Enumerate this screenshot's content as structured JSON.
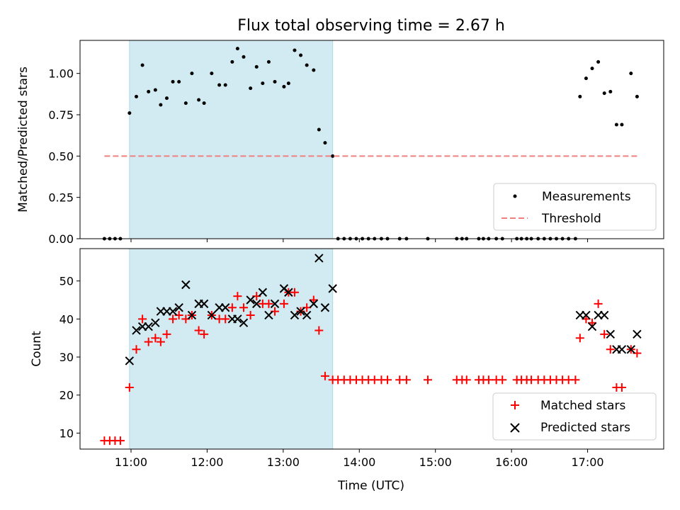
{
  "chart_data": {
    "title": "Flux total observing time = 2.67 h",
    "xlabel": "Time (UTC)",
    "xlim_hours": [
      10.33,
      18.0
    ],
    "xticks": [
      {
        "value": 11,
        "label": "11:00"
      },
      {
        "value": 12,
        "label": "12:00"
      },
      {
        "value": 13,
        "label": "13:00"
      },
      {
        "value": 14,
        "label": "14:00"
      },
      {
        "value": 15,
        "label": "15:00"
      },
      {
        "value": 16,
        "label": "16:00"
      },
      {
        "value": 17,
        "label": "17:00"
      }
    ],
    "shaded_interval_hours": [
      10.98,
      13.65
    ],
    "shade_color": "#add8e6",
    "panels": [
      {
        "type": "scatter",
        "ylabel": "Matched/Predicted stars",
        "ylim": [
          0,
          1.2
        ],
        "yticks": [
          {
            "value": 0,
            "label": "0.00"
          },
          {
            "value": 0.25,
            "label": "0.25"
          },
          {
            "value": 0.5,
            "label": "0.50"
          },
          {
            "value": 0.75,
            "label": "0.75"
          },
          {
            "value": 1.0,
            "label": "1.00"
          }
        ],
        "legend": "lower-right",
        "series": [
          {
            "name": "Measurements",
            "marker": "dot",
            "color": "#000000",
            "x": [
              10.65,
              10.72,
              10.79,
              10.86,
              10.98,
              11.07,
              11.15,
              11.23,
              11.32,
              11.39,
              11.47,
              11.55,
              11.63,
              11.72,
              11.8,
              11.89,
              11.96,
              12.06,
              12.16,
              12.24,
              12.33,
              12.4,
              12.48,
              12.57,
              12.65,
              12.73,
              12.81,
              12.89,
              13.01,
              13.07,
              13.15,
              13.23,
              13.31,
              13.4,
              13.47,
              13.55,
              13.65,
              13.72,
              13.8,
              13.88,
              13.96,
              14.04,
              14.12,
              14.2,
              14.29,
              14.37,
              14.53,
              14.62,
              14.9,
              15.28,
              15.35,
              15.41,
              15.57,
              15.63,
              15.7,
              15.8,
              15.88,
              16.07,
              16.13,
              16.2,
              16.26,
              16.35,
              16.43,
              16.51,
              16.59,
              16.67,
              16.75,
              16.84,
              16.9,
              16.98,
              17.06,
              17.14,
              17.22,
              17.3,
              17.38,
              17.45,
              17.57,
              17.65
            ],
            "y": [
              0,
              0,
              0,
              0,
              0.76,
              0.86,
              1.05,
              0.89,
              0.9,
              0.81,
              0.85,
              0.95,
              0.95,
              0.82,
              1.0,
              0.84,
              0.82,
              1.0,
              0.93,
              0.93,
              1.07,
              1.15,
              1.1,
              0.91,
              1.04,
              0.94,
              1.07,
              0.95,
              0.92,
              0.94,
              1.14,
              1.11,
              1.05,
              1.02,
              0.66,
              0.58,
              0.5,
              0,
              0,
              0,
              0,
              0,
              0,
              0,
              0,
              0,
              0,
              0,
              0,
              0,
              0,
              0,
              0,
              0,
              0,
              0,
              0,
              0,
              0,
              0,
              0,
              0,
              0,
              0,
              0,
              0,
              0,
              0,
              0.86,
              0.97,
              1.03,
              1.07,
              0.88,
              0.89,
              0.69,
              0.69,
              1.0,
              0.86
            ]
          },
          {
            "name": "Threshold",
            "type": "line",
            "style": "dashed",
            "color": "#f08080",
            "x": [
              10.65,
              17.65
            ],
            "y": [
              0.5,
              0.5
            ]
          }
        ]
      },
      {
        "type": "scatter",
        "ylabel": "Count",
        "ylim": [
          5.8,
          58.5
        ],
        "yticks": [
          {
            "value": 10,
            "label": "10"
          },
          {
            "value": 20,
            "label": "20"
          },
          {
            "value": 30,
            "label": "30"
          },
          {
            "value": 40,
            "label": "40"
          },
          {
            "value": 50,
            "label": "50"
          }
        ],
        "legend": "lower-right",
        "series": [
          {
            "name": "Matched stars",
            "marker": "plus",
            "color": "#ff0000",
            "x": [
              10.65,
              10.72,
              10.79,
              10.86,
              10.98,
              11.07,
              11.15,
              11.23,
              11.32,
              11.39,
              11.47,
              11.55,
              11.63,
              11.72,
              11.8,
              11.89,
              11.96,
              12.06,
              12.16,
              12.24,
              12.33,
              12.4,
              12.48,
              12.57,
              12.65,
              12.73,
              12.81,
              12.89,
              13.01,
              13.07,
              13.15,
              13.23,
              13.31,
              13.4,
              13.47,
              13.55,
              13.65,
              13.72,
              13.8,
              13.88,
              13.96,
              14.04,
              14.12,
              14.2,
              14.29,
              14.37,
              14.53,
              14.62,
              14.9,
              15.28,
              15.35,
              15.41,
              15.57,
              15.63,
              15.7,
              15.8,
              15.88,
              16.07,
              16.13,
              16.2,
              16.26,
              16.35,
              16.43,
              16.51,
              16.59,
              16.67,
              16.75,
              16.84,
              16.9,
              16.98,
              17.06,
              17.14,
              17.22,
              17.3,
              17.38,
              17.45,
              17.57,
              17.65
            ],
            "y": [
              8,
              8,
              8,
              8,
              22,
              32,
              40,
              34,
              35,
              34,
              36,
              40,
              41,
              40,
              41,
              37,
              36,
              41,
              40,
              40,
              43,
              46,
              43,
              41,
              46,
              44,
              44,
              42,
              44,
              47,
              47,
              42,
              43,
              45,
              37,
              25,
              24,
              24,
              24,
              24,
              24,
              24,
              24,
              24,
              24,
              24,
              24,
              24,
              24,
              24,
              24,
              24,
              24,
              24,
              24,
              24,
              24,
              24,
              24,
              24,
              24,
              24,
              24,
              24,
              24,
              24,
              24,
              24,
              35,
              40,
              39,
              44,
              36,
              32,
              22,
              22,
              32,
              31
            ]
          },
          {
            "name": "Predicted stars",
            "marker": "x",
            "color": "#000000",
            "x": [
              10.98,
              11.07,
              11.15,
              11.23,
              11.32,
              11.39,
              11.47,
              11.55,
              11.63,
              11.72,
              11.8,
              11.89,
              11.96,
              12.06,
              12.16,
              12.24,
              12.33,
              12.4,
              12.48,
              12.57,
              12.65,
              12.73,
              12.81,
              12.89,
              13.01,
              13.07,
              13.15,
              13.23,
              13.31,
              13.4,
              13.47,
              13.55,
              13.65,
              16.9,
              16.98,
              17.06,
              17.14,
              17.22,
              17.3,
              17.38,
              17.45,
              17.57,
              17.65
            ],
            "y": [
              29,
              37,
              38,
              38,
              39,
              42,
              42,
              42,
              43,
              49,
              41,
              44,
              44,
              41,
              43,
              43,
              40,
              40,
              39,
              45,
              44,
              47,
              41,
              44,
              48,
              47,
              41,
              42,
              41,
              44,
              56,
              43,
              48,
              41,
              41,
              38,
              41,
              41,
              36,
              32,
              32,
              32,
              36
            ]
          }
        ]
      }
    ]
  }
}
